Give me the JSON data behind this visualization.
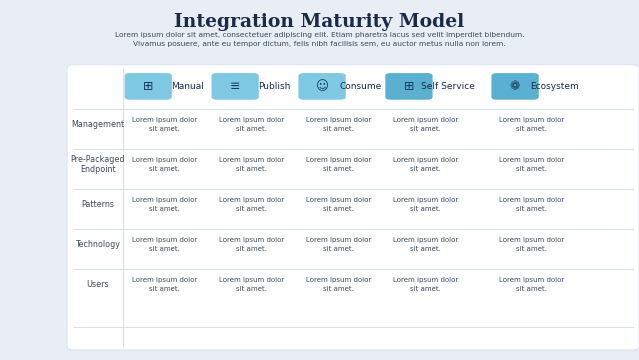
{
  "title": "Integration Maturity Model",
  "subtitle_line1": "Lorem ipsum dolor sit amet, consectetuer adipiscing elit. Etiam pharetra lacus sed velit imperdiet bibendum.",
  "subtitle_line2": "Vivamus posuere, ante eu tempor dictum, felis nibh facilisis sem, eu auctor metus nulla non lorem.",
  "bg_color": "#e8eef4",
  "table_bg": "#ffffff",
  "header_icon_bg": "#7ec8e3",
  "header_icon_bg_dark": "#5ab0d0",
  "columns": [
    "Manual",
    "Publish",
    "Consume",
    "Self Service",
    "Ecosystem"
  ],
  "rows": [
    "Management",
    "Pre-Packaged\nEndpoint",
    "Patterns",
    "Technology",
    "Users"
  ],
  "cell_text": "Lorem ipsum dolor\nsit amet.",
  "title_color": "#1a2a4a",
  "subtitle_color": "#3a4a5a",
  "row_label_color": "#3a4a5a",
  "col_header_color": "#1a2a4a",
  "cell_text_color": "#3a4a5a",
  "grid_color": "#ccddee",
  "icon_color": "#1a3a5a"
}
